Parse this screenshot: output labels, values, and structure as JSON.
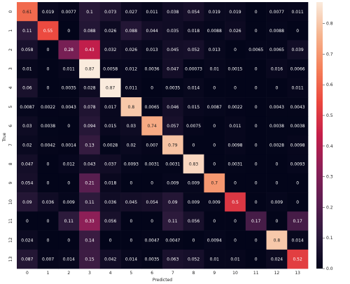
{
  "chart_data": {
    "type": "heatmap",
    "xlabel": "Predicted",
    "ylabel": "True",
    "x_categories": [
      "0",
      "1",
      "2",
      "3",
      "4",
      "5",
      "6",
      "7",
      "8",
      "9",
      "10",
      "11",
      "12",
      "13"
    ],
    "y_categories": [
      "0",
      "1",
      "2",
      "3",
      "4",
      "5",
      "6",
      "7",
      "8",
      "9",
      "10",
      "11",
      "12",
      "13"
    ],
    "values": [
      [
        0.61,
        0.019,
        0.0077,
        0.1,
        0.073,
        0.027,
        0.011,
        0.038,
        0.054,
        0.019,
        0.019,
        0,
        0.0077,
        0.011
      ],
      [
        0.11,
        0.55,
        0,
        0.088,
        0.026,
        0.088,
        0.044,
        0.035,
        0.018,
        0.0088,
        0.026,
        0,
        0.0088,
        0
      ],
      [
        0.058,
        0,
        0.28,
        0.43,
        0.032,
        0.026,
        0.013,
        0.045,
        0.052,
        0.013,
        0,
        0.0065,
        0.0065,
        0.039
      ],
      [
        0.01,
        0,
        0.011,
        0.87,
        0.0058,
        0.012,
        0.0036,
        0.047,
        0.00073,
        0.01,
        0.0015,
        0,
        0.016,
        0.0066
      ],
      [
        0.06,
        0,
        0.0035,
        0.028,
        0.87,
        0.011,
        0,
        0.0035,
        0.014,
        0,
        0,
        0,
        0,
        0.011
      ],
      [
        0.0087,
        0.0022,
        0.0043,
        0.078,
        0.017,
        0.8,
        0.0065,
        0.046,
        0.015,
        0.0087,
        0.0022,
        0,
        0.0043,
        0.0043
      ],
      [
        0.03,
        0.0038,
        0,
        0.094,
        0.015,
        0.03,
        0.74,
        0.057,
        0.0075,
        0,
        0.011,
        0,
        0.0038,
        0.0038
      ],
      [
        0.02,
        0.0042,
        0.0014,
        0.13,
        0.0028,
        0.02,
        0.007,
        0.79,
        0,
        0,
        0.0098,
        0,
        0.0028,
        0.0098
      ],
      [
        0.047,
        0,
        0.012,
        0.043,
        0.037,
        0.0093,
        0.0031,
        0.0031,
        0.83,
        0,
        0.0031,
        0,
        0,
        0.0093
      ],
      [
        0.054,
        0,
        0,
        0.21,
        0.018,
        0,
        0,
        0.009,
        0.009,
        0.7,
        0,
        0,
        0,
        0
      ],
      [
        0.09,
        0.036,
        0.009,
        0.11,
        0.036,
        0.045,
        0.054,
        0.09,
        0.009,
        0.009,
        0.5,
        0,
        0.009,
        0
      ],
      [
        0,
        0,
        0.11,
        0.33,
        0.056,
        0,
        0,
        0.11,
        0.056,
        0,
        0,
        0.17,
        0,
        0.17
      ],
      [
        0.024,
        0,
        0,
        0.14,
        0,
        0,
        0.0047,
        0.0047,
        0,
        0.0094,
        0,
        0,
        0.8,
        0.014
      ],
      [
        0.087,
        0.007,
        0.014,
        0.15,
        0.042,
        0.014,
        0.0035,
        0.063,
        0.052,
        0.01,
        0.01,
        0,
        0.024,
        0.52
      ]
    ],
    "value_labels": [
      [
        "0.61",
        "0.019",
        "0.0077",
        "0.1",
        "0.073",
        "0.027",
        "0.011",
        "0.038",
        "0.054",
        "0.019",
        "0.019",
        "0",
        "0.0077",
        "0.011"
      ],
      [
        "0.11",
        "0.55",
        "0",
        "0.088",
        "0.026",
        "0.088",
        "0.044",
        "0.035",
        "0.018",
        "0.0088",
        "0.026",
        "0",
        "0.0088",
        "0"
      ],
      [
        "0.058",
        "0",
        "0.28",
        "0.43",
        "0.032",
        "0.026",
        "0.013",
        "0.045",
        "0.052",
        "0.013",
        "0",
        "0.0065",
        "0.0065",
        "0.039"
      ],
      [
        "0.01",
        "0",
        "0.011",
        "0.87",
        "0.0058",
        "0.012",
        "0.0036",
        "0.047",
        "0.00073",
        "0.01",
        "0.0015",
        "0",
        "0.016",
        "0.0066"
      ],
      [
        "0.06",
        "0",
        "0.0035",
        "0.028",
        "0.87",
        "0.011",
        "0",
        "0.0035",
        "0.014",
        "0",
        "0",
        "0",
        "0",
        "0.011"
      ],
      [
        "0.0087",
        "0.0022",
        "0.0043",
        "0.078",
        "0.017",
        "0.8",
        "0.0065",
        "0.046",
        "0.015",
        "0.0087",
        "0.0022",
        "0",
        "0.0043",
        "0.0043"
      ],
      [
        "0.03",
        "0.0038",
        "0",
        "0.094",
        "0.015",
        "0.03",
        "0.74",
        "0.057",
        "0.0075",
        "0",
        "0.011",
        "0",
        "0.0038",
        "0.0038"
      ],
      [
        "0.02",
        "0.0042",
        "0.0014",
        "0.13",
        "0.0028",
        "0.02",
        "0.007",
        "0.79",
        "0",
        "0",
        "0.0098",
        "0",
        "0.0028",
        "0.0098"
      ],
      [
        "0.047",
        "0",
        "0.012",
        "0.043",
        "0.037",
        "0.0093",
        "0.0031",
        "0.0031",
        "0.83",
        "0",
        "0.0031",
        "0",
        "0",
        "0.0093"
      ],
      [
        "0.054",
        "0",
        "0",
        "0.21",
        "0.018",
        "0",
        "0",
        "0.009",
        "0.009",
        "0.7",
        "0",
        "0",
        "0",
        "0"
      ],
      [
        "0.09",
        "0.036",
        "0.009",
        "0.11",
        "0.036",
        "0.045",
        "0.054",
        "0.09",
        "0.009",
        "0.009",
        "0.5",
        "0",
        "0.009",
        "0"
      ],
      [
        "0",
        "0",
        "0.11",
        "0.33",
        "0.056",
        "0",
        "0",
        "0.11",
        "0.056",
        "0",
        "0",
        "0.17",
        "0",
        "0.17"
      ],
      [
        "0.024",
        "0",
        "0",
        "0.14",
        "0",
        "0",
        "0.0047",
        "0.0047",
        "0",
        "0.0094",
        "0",
        "0",
        "0.8",
        "0.014"
      ],
      [
        "0.087",
        "0.007",
        "0.014",
        "0.15",
        "0.042",
        "0.014",
        "0.0035",
        "0.063",
        "0.052",
        "0.01",
        "0.01",
        "0",
        "0.024",
        "0.52"
      ]
    ],
    "colorbar": {
      "min": 0,
      "max": 0.87,
      "ticks": [
        0.0,
        0.1,
        0.2,
        0.3,
        0.4,
        0.5,
        0.6,
        0.7,
        0.8
      ],
      "tick_labels": [
        "0.0",
        "0.1",
        "0.2",
        "0.3",
        "0.4",
        "0.5",
        "0.6",
        "0.7",
        "0.8"
      ],
      "colormap": "rocket",
      "colormap_stops": [
        "#03051a",
        "#2b1a3b",
        "#5b1e51",
        "#8b1f57",
        "#c41e4a",
        "#eb473e",
        "#f58059",
        "#f6b48e",
        "#faebdd"
      ]
    },
    "grid": false,
    "legend": "none"
  }
}
